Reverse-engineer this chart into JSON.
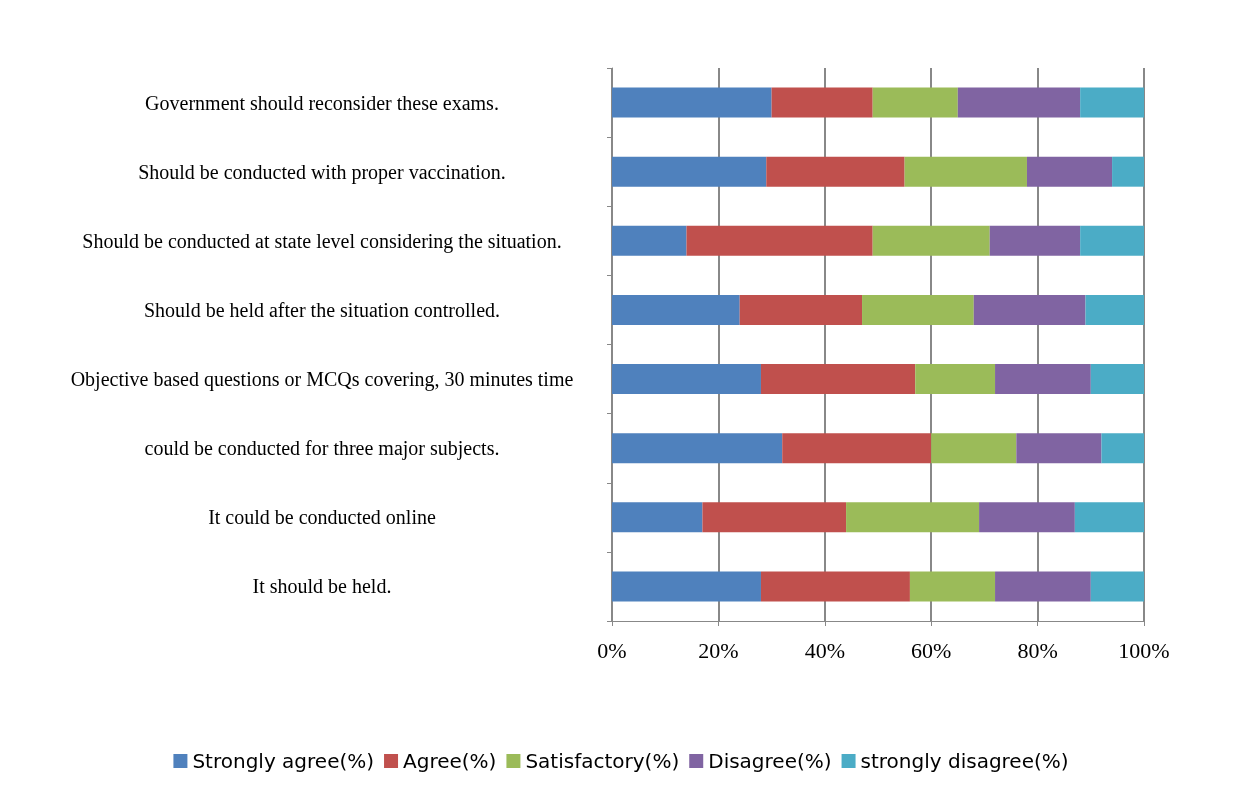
{
  "chart_data": {
    "type": "bar",
    "orientation": "horizontal",
    "stacked": true,
    "categories": [
      "Government should reconsider these exams.",
      "Should be conducted with proper vaccination.",
      "Should be conducted at state level considering the situation.",
      "Should be held after the situation controlled.",
      "Objective based questions or MCQs covering, 30 minutes time",
      "could be conducted for three major subjects.",
      "It could be conducted online",
      "It should be held."
    ],
    "series": [
      {
        "name": "Strongly agree(%)",
        "color": "#4f81bd",
        "values": [
          30,
          29,
          14,
          24,
          28,
          32,
          17,
          28
        ]
      },
      {
        "name": "Agree(%)",
        "color": "#c0504d",
        "values": [
          19,
          26,
          35,
          23,
          29,
          28,
          27,
          28
        ]
      },
      {
        "name": "Satisfactory(%)",
        "color": "#9bbb59",
        "values": [
          16,
          23,
          22,
          21,
          15,
          16,
          25,
          16
        ]
      },
      {
        "name": "Disagree(%)",
        "color": "#8064a2",
        "values": [
          23,
          16,
          17,
          21,
          18,
          16,
          18,
          18
        ]
      },
      {
        "name": "strongly disagree(%)",
        "color": "#4bacc6",
        "values": [
          12,
          6,
          12,
          11,
          10,
          8,
          13,
          10
        ]
      }
    ],
    "xlim": [
      0,
      100
    ],
    "xticks": [
      {
        "value": 0,
        "label": "0%"
      },
      {
        "value": 20,
        "label": "20%"
      },
      {
        "value": 40,
        "label": "40%"
      },
      {
        "value": 60,
        "label": "60%"
      },
      {
        "value": 80,
        "label": "80%"
      },
      {
        "value": 100,
        "label": "100%"
      }
    ],
    "grid": "x",
    "legend": "bottom"
  }
}
